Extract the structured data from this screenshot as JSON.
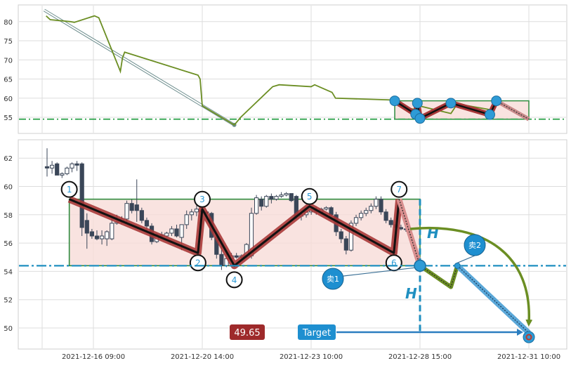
{
  "chart_data": [
    {
      "type": "line",
      "panel": "top-oscillator",
      "ylim": [
        50,
        83
      ],
      "yticks": [
        "55",
        "60",
        "65",
        "70",
        "75",
        "80"
      ],
      "grid": true,
      "series": [
        {
          "color": "#6b8e23",
          "x": [
            "2021-12-14 10:00",
            "2021-12-14 14:00",
            "2021-12-15 10:00",
            "2021-12-15 14:00",
            "2021-12-16 10:00",
            "2021-12-16 14:00",
            "2021-12-17 10:00",
            "2021-12-17 12:00",
            "2021-12-17 14:00",
            "2021-12-20 10:00",
            "2021-12-20 12:00",
            "2021-12-20 14:00",
            "2021-12-21 10:00",
            "2021-12-21 14:00",
            "2021-12-22 10:00",
            "2021-12-22 14:00",
            "2021-12-23 10:00",
            "2021-12-23 14:00",
            "2021-12-24 10:00",
            "2021-12-24 14:00",
            "2021-12-27 10:00",
            "2021-12-27 14:00",
            "2021-12-28 10:00",
            "2021-12-28 14:00",
            "2021-12-29 10:00",
            "2021-12-29 14:00",
            "2021-12-30 10:00"
          ],
          "values": [
            81.5,
            80.5,
            80,
            79.8,
            81.5,
            81,
            67,
            70.5,
            72,
            66,
            65,
            58,
            53,
            55,
            63,
            63.5,
            63,
            63.5,
            61.5,
            60,
            59.5,
            58,
            57,
            58,
            56,
            58.5,
            57
          ]
        }
      ],
      "annotations": {
        "arrow": {
          "from": [
            "2021-12-14 08:00",
            83
          ],
          "to": [
            "2021-12-21 10:00",
            53
          ]
        },
        "support_line": 54.5,
        "box": {
          "x": [
            "2021-12-27 10:00",
            "2021-12-31 10:00"
          ],
          "y": [
            54.5,
            59.3
          ]
        },
        "pattern_points": [
          {
            "x": "2021-12-27 10:00",
            "y": 59.3
          },
          {
            "x": "2021-12-28 10:00",
            "y": 55.8
          },
          {
            "x": "2021-12-28 12:00",
            "y": 58.7
          },
          {
            "x": "2021-12-28 15:00",
            "y": 54.7
          },
          {
            "x": "2021-12-29 10:00",
            "y": 58.7
          },
          {
            "x": "2021-12-30 10:00",
            "y": 55.7
          },
          {
            "x": "2021-12-30 14:00",
            "y": 59.3
          }
        ],
        "pattern_projection_end": {
          "x": "2021-12-31 10:00",
          "y": 54.5
        }
      }
    },
    {
      "type": "candlestick",
      "panel": "main-price",
      "ylim": [
        48.5,
        63
      ],
      "yticks": [
        "50",
        "52",
        "54",
        "56",
        "58",
        "60",
        "62"
      ],
      "xticks": [
        "2021-12-16 09:00",
        "2021-12-20 14:00",
        "2021-12-23 10:00",
        "2021-12-28 15:00",
        "2021-12-31 10:00"
      ],
      "grid": true,
      "candles": [
        {
          "o": 61.4,
          "h": 62.7,
          "l": 60.7,
          "c": 61.3
        },
        {
          "o": 61.3,
          "h": 61.8,
          "l": 60.9,
          "c": 61.5
        },
        {
          "o": 61.6,
          "h": 61.7,
          "l": 60.8,
          "c": 60.8
        },
        {
          "o": 60.8,
          "h": 61.0,
          "l": 60.6,
          "c": 60.9
        },
        {
          "o": 60.9,
          "h": 61.4,
          "l": 60.8,
          "c": 61.3
        },
        {
          "o": 61.3,
          "h": 61.7,
          "l": 61.0,
          "c": 61.6
        },
        {
          "o": 61.6,
          "h": 61.8,
          "l": 61.1,
          "c": 61.5
        },
        {
          "o": 61.6,
          "h": 61.7,
          "l": 56.5,
          "c": 57.1
        },
        {
          "o": 57.6,
          "h": 58.1,
          "l": 55.6,
          "c": 56.7
        },
        {
          "o": 56.8,
          "h": 57.0,
          "l": 56.3,
          "c": 56.5
        },
        {
          "o": 56.5,
          "h": 56.9,
          "l": 56.2,
          "c": 56.3
        },
        {
          "o": 56.3,
          "h": 56.9,
          "l": 55.9,
          "c": 56.5
        },
        {
          "o": 56.3,
          "h": 56.9,
          "l": 55.8,
          "c": 56.8
        },
        {
          "o": 56.3,
          "h": 57.7,
          "l": 56.2,
          "c": 57.4
        },
        {
          "o": 57.4,
          "h": 58.0,
          "l": 57.3,
          "c": 57.5
        },
        {
          "o": 57.5,
          "h": 57.9,
          "l": 57.3,
          "c": 57.7
        },
        {
          "o": 57.7,
          "h": 59.0,
          "l": 57.5,
          "c": 58.8
        },
        {
          "o": 58.8,
          "h": 59.1,
          "l": 58.1,
          "c": 58.3
        },
        {
          "o": 58.7,
          "h": 60.5,
          "l": 57.5,
          "c": 58.3
        },
        {
          "o": 58.3,
          "h": 58.5,
          "l": 57.4,
          "c": 57.6
        },
        {
          "o": 57.6,
          "h": 57.8,
          "l": 56.9,
          "c": 57.2
        },
        {
          "o": 57.2,
          "h": 57.4,
          "l": 55.9,
          "c": 56.1
        },
        {
          "o": 56.1,
          "h": 56.7,
          "l": 56.0,
          "c": 56.6
        },
        {
          "o": 56.6,
          "h": 56.8,
          "l": 56.3,
          "c": 56.5
        },
        {
          "o": 56.5,
          "h": 56.8,
          "l": 56.4,
          "c": 56.7
        },
        {
          "o": 56.7,
          "h": 57.2,
          "l": 56.5,
          "c": 57.0
        },
        {
          "o": 57.0,
          "h": 57.3,
          "l": 56.4,
          "c": 56.5
        },
        {
          "o": 56.4,
          "h": 57.3,
          "l": 55.5,
          "c": 57.3
        },
        {
          "o": 57.3,
          "h": 58.3,
          "l": 57.0,
          "c": 58.0
        },
        {
          "o": 58.0,
          "h": 58.4,
          "l": 57.6,
          "c": 58.2
        },
        {
          "o": 58.2,
          "h": 58.7,
          "l": 57.9,
          "c": 58.4
        },
        {
          "o": 58.3,
          "h": 58.4,
          "l": 58.1,
          "c": 58.2
        },
        {
          "o": 58.2,
          "h": 58.3,
          "l": 58.0,
          "c": 58.1
        },
        {
          "o": 58.1,
          "h": 58.2,
          "l": 56.2,
          "c": 56.4
        },
        {
          "o": 56.4,
          "h": 56.5,
          "l": 54.9,
          "c": 55.2
        },
        {
          "o": 55.2,
          "h": 55.8,
          "l": 54.1,
          "c": 54.4
        },
        {
          "o": 54.4,
          "h": 55.3,
          "l": 54.3,
          "c": 54.9
        },
        {
          "o": 54.9,
          "h": 55.3,
          "l": 54.8,
          "c": 55.1
        },
        {
          "o": 55.1,
          "h": 55.3,
          "l": 54.9,
          "c": 55.0
        },
        {
          "o": 55.0,
          "h": 55.2,
          "l": 54.8,
          "c": 55.1
        },
        {
          "o": 55.1,
          "h": 56.0,
          "l": 54.9,
          "c": 55.9
        },
        {
          "o": 55.1,
          "h": 58.5,
          "l": 54.9,
          "c": 58.1
        },
        {
          "o": 58.1,
          "h": 59.4,
          "l": 58.0,
          "c": 59.2
        },
        {
          "o": 59.1,
          "h": 59.3,
          "l": 58.3,
          "c": 58.6
        },
        {
          "o": 58.6,
          "h": 59.4,
          "l": 58.5,
          "c": 59.3
        },
        {
          "o": 59.3,
          "h": 59.5,
          "l": 58.8,
          "c": 59.1
        },
        {
          "o": 59.1,
          "h": 59.4,
          "l": 59.0,
          "c": 59.3
        },
        {
          "o": 59.3,
          "h": 59.6,
          "l": 59.2,
          "c": 59.4
        },
        {
          "o": 59.4,
          "h": 59.6,
          "l": 59.3,
          "c": 59.5
        },
        {
          "o": 59.5,
          "h": 59.5,
          "l": 58.9,
          "c": 59.0
        },
        {
          "o": 59.3,
          "h": 59.4,
          "l": 57.7,
          "c": 57.9
        },
        {
          "o": 57.9,
          "h": 58.3,
          "l": 57.6,
          "c": 58.0
        },
        {
          "o": 58.0,
          "h": 58.3,
          "l": 57.8,
          "c": 58.2
        },
        {
          "o": 58.2,
          "h": 58.5,
          "l": 58.0,
          "c": 58.3
        },
        {
          "o": 58.3,
          "h": 58.6,
          "l": 58.0,
          "c": 58.2
        },
        {
          "o": 58.2,
          "h": 58.5,
          "l": 58.1,
          "c": 58.4
        },
        {
          "o": 58.4,
          "h": 58.6,
          "l": 58.3,
          "c": 58.5
        },
        {
          "o": 58.5,
          "h": 58.6,
          "l": 57.9,
          "c": 58.0
        },
        {
          "o": 58.0,
          "h": 58.2,
          "l": 56.5,
          "c": 56.8
        },
        {
          "o": 56.8,
          "h": 57.0,
          "l": 56.0,
          "c": 56.3
        },
        {
          "o": 56.3,
          "h": 56.5,
          "l": 55.2,
          "c": 55.5
        },
        {
          "o": 55.5,
          "h": 57.6,
          "l": 55.4,
          "c": 57.4
        },
        {
          "o": 57.4,
          "h": 58.0,
          "l": 57.2,
          "c": 57.8
        },
        {
          "o": 57.8,
          "h": 58.3,
          "l": 57.6,
          "c": 58.1
        },
        {
          "o": 58.1,
          "h": 58.5,
          "l": 57.9,
          "c": 58.3
        },
        {
          "o": 58.3,
          "h": 58.8,
          "l": 58.1,
          "c": 58.6
        },
        {
          "o": 58.6,
          "h": 59.3,
          "l": 58.4,
          "c": 59.1
        },
        {
          "o": 59.1,
          "h": 59.3,
          "l": 58.0,
          "c": 58.2
        },
        {
          "o": 58.2,
          "h": 58.4,
          "l": 57.4,
          "c": 57.6
        },
        {
          "o": 57.6,
          "h": 57.8,
          "l": 57.1,
          "c": 57.3
        },
        {
          "o": 57.3,
          "h": 57.5,
          "l": 57.0,
          "c": 57.1
        },
        {
          "o": 57.1,
          "h": 57.3,
          "l": 56.9,
          "c": 57.0
        },
        {
          "o": 57.0,
          "h": 57.2,
          "l": 56.8,
          "c": 57.0
        }
      ],
      "zigzag": [
        {
          "label": "1",
          "x": "2021-12-15 09:00",
          "y": 59.1
        },
        {
          "label": "2",
          "x": "2021-12-20 10:00",
          "y": 55.3
        },
        {
          "label": "3",
          "x": "2021-12-20 14:00",
          "y": 58.4
        },
        {
          "label": "4",
          "x": "2021-12-21 10:00",
          "y": 54.4
        },
        {
          "label": "5",
          "x": "2021-12-23 09:00",
          "y": 58.6
        },
        {
          "label": "6",
          "x": "2021-12-27 09:00",
          "y": 55.3
        },
        {
          "label": "7",
          "x": "2021-12-27 15:00",
          "y": 59.1
        }
      ],
      "projection_dotted_end": {
        "x": "2021-12-28 15:00",
        "y": 54.4
      },
      "box": {
        "x": [
          "2021-12-15 09:00",
          "2021-12-28 15:00"
        ],
        "y": [
          54.4,
          59.1
        ]
      },
      "neckline": 54.4,
      "measure_label": "H",
      "sell_points": [
        {
          "label": "卖1",
          "x": "2021-12-28 15:00",
          "y": 54.4
        },
        {
          "label": "卖2",
          "x": "2021-12-29 14:00",
          "y": 54.4
        }
      ],
      "pullback_path": [
        {
          "x": "2021-12-28 15:00",
          "y": 54.4
        },
        {
          "x": "2021-12-29 10:00",
          "y": 52.9
        },
        {
          "x": "2021-12-29 14:00",
          "y": 54.4
        }
      ],
      "target": {
        "label": "Target",
        "value_label": "49.65",
        "x": "2021-12-31 10:00",
        "y": 49.65
      }
    }
  ]
}
